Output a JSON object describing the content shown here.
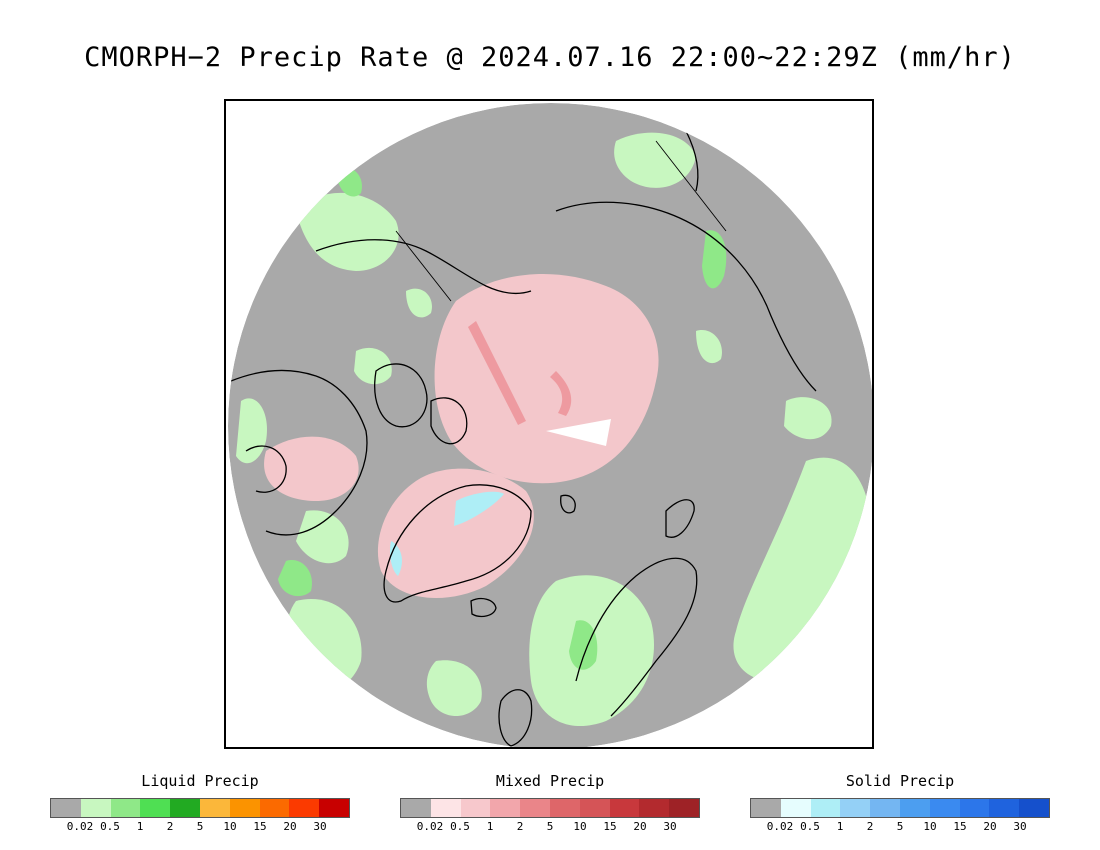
{
  "title": "CMORPH−2 Precip Rate @ 2024.07.16 22:00~22:29Z (mm/hr)",
  "map": {
    "projection": "north polar stereographic",
    "colors": {
      "no_precip": "#a9a9a9",
      "liquid_light": "#c8f7c0",
      "liquid_mid": "#8fe888",
      "liquid_heavy": "#46d84a",
      "mixed_light": "#f7c8cc",
      "mixed_mid": "#ee9aa0",
      "solid_light": "#aeeef6",
      "coastline": "#000000"
    }
  },
  "legends": [
    {
      "title": "Liquid Precip",
      "colors": [
        "#a9a9a9",
        "#c8f7c0",
        "#8fe888",
        "#4fdf53",
        "#22aa22",
        "#fbb73a",
        "#fb9300",
        "#fb6a00",
        "#fb3a00",
        "#c80000"
      ],
      "ticks": [
        "0.02",
        "0.5",
        "1",
        "2",
        "5",
        "10",
        "15",
        "20",
        "30"
      ]
    },
    {
      "title": "Mixed Precip",
      "colors": [
        "#a9a9a9",
        "#fde4e6",
        "#f7c8cc",
        "#f2a6ab",
        "#ea8589",
        "#de6669",
        "#d55457",
        "#c8383c",
        "#b32a2e",
        "#9e2226"
      ],
      "ticks": [
        "0.02",
        "0.5",
        "1",
        "2",
        "5",
        "10",
        "15",
        "20",
        "30"
      ]
    },
    {
      "title": "Solid Precip",
      "colors": [
        "#a9a9a9",
        "#e6fdfe",
        "#aeeef6",
        "#94d0f6",
        "#74b6f2",
        "#4c9ef0",
        "#3a8af0",
        "#2c76ea",
        "#1f63de",
        "#1550cc"
      ],
      "ticks": [
        "0.02",
        "0.5",
        "1",
        "2",
        "5",
        "10",
        "15",
        "20",
        "30"
      ]
    }
  ]
}
